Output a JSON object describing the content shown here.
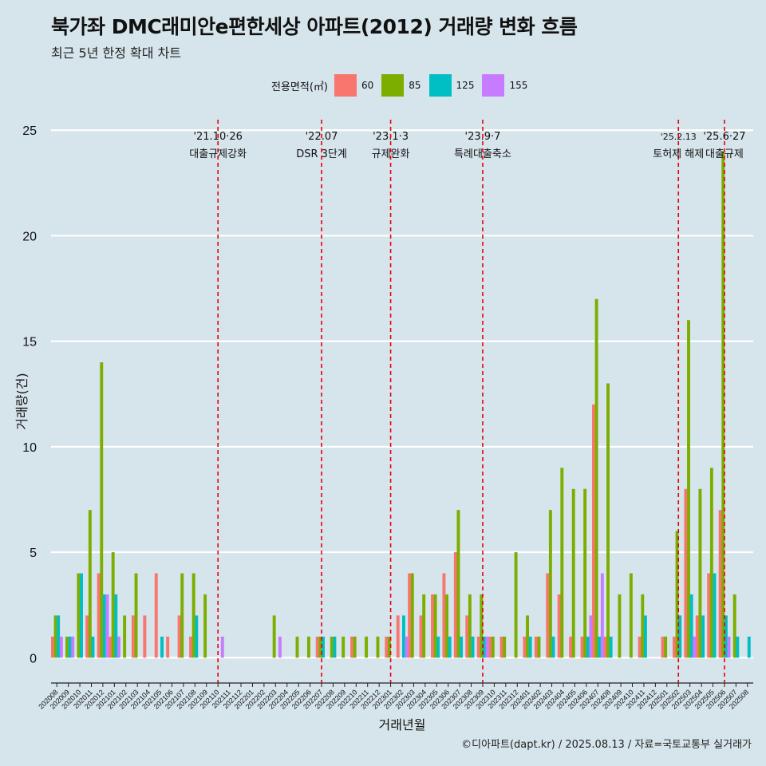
{
  "title": "북가좌 DMC래미안e편한세상 아파트(2012) 거래량 변화 흐름",
  "subtitle": "최근 5년 한정 확대 차트",
  "caption": "©디아파트(dapt.kr) / 2025.08.13 / 자료=국토교통부 실거래가",
  "chart_data": {
    "type": "bar",
    "xlabel": "거래년월",
    "ylabel": "거래량(건)",
    "ylim": [
      -1.2,
      25.5
    ],
    "yticks": [
      0,
      5,
      10,
      15,
      20,
      25
    ],
    "legend": {
      "title": "전용면적(㎡)",
      "position": "top",
      "items": [
        {
          "name": "60",
          "color": "#f8766d"
        },
        {
          "name": "85",
          "color": "#7cae00"
        },
        {
          "name": "125",
          "color": "#00bfc4"
        },
        {
          "name": "155",
          "color": "#c77cff"
        }
      ]
    },
    "categories": [
      "202008",
      "202009",
      "202010",
      "202011",
      "202012",
      "202101",
      "202102",
      "202103",
      "202104",
      "202105",
      "202106",
      "202107",
      "202108",
      "202109",
      "202110",
      "202111",
      "202112",
      "202201",
      "202202",
      "202203",
      "202204",
      "202205",
      "202206",
      "202207",
      "202208",
      "202209",
      "202210",
      "202211",
      "202212",
      "202301",
      "202302",
      "202303",
      "202304",
      "202305",
      "202306",
      "202307",
      "202308",
      "202309",
      "202310",
      "202311",
      "202312",
      "202401",
      "202402",
      "202403",
      "202404",
      "202405",
      "202406",
      "202407",
      "202408",
      "202409",
      "202410",
      "202411",
      "202412",
      "202501",
      "202502",
      "202503",
      "202504",
      "202505",
      "202506",
      "202507",
      "202508"
    ],
    "series": [
      {
        "name": "60",
        "color": "#f8766d",
        "values": [
          1,
          0,
          0,
          2,
          4,
          1,
          0,
          2,
          2,
          4,
          1,
          2,
          1,
          0,
          0,
          0,
          0,
          0,
          0,
          0,
          0,
          0,
          0,
          1,
          0,
          0,
          1,
          0,
          0,
          1,
          2,
          4,
          2,
          3,
          4,
          5,
          2,
          1,
          1,
          1,
          0,
          1,
          1,
          4,
          3,
          1,
          1,
          12,
          1,
          0,
          0,
          1,
          0,
          1,
          1,
          8,
          2,
          4,
          7,
          0,
          0
        ]
      },
      {
        "name": "85",
        "color": "#7cae00",
        "values": [
          2,
          1,
          4,
          7,
          14,
          5,
          2,
          4,
          0,
          0,
          0,
          4,
          4,
          3,
          0,
          0,
          0,
          0,
          0,
          2,
          0,
          1,
          1,
          1,
          1,
          1,
          1,
          1,
          1,
          1,
          0,
          4,
          3,
          3,
          3,
          7,
          3,
          3,
          1,
          1,
          5,
          2,
          1,
          7,
          9,
          8,
          8,
          17,
          13,
          3,
          4,
          3,
          0,
          1,
          6,
          16,
          8,
          9,
          24,
          3,
          0
        ]
      },
      {
        "name": "125",
        "color": "#00bfc4",
        "values": [
          2,
          1,
          4,
          1,
          3,
          3,
          0,
          0,
          0,
          1,
          0,
          0,
          2,
          0,
          0,
          0,
          0,
          0,
          0,
          0,
          0,
          0,
          0,
          1,
          1,
          0,
          0,
          0,
          0,
          0,
          2,
          0,
          0,
          1,
          1,
          1,
          1,
          1,
          0,
          0,
          0,
          1,
          0,
          1,
          0,
          0,
          1,
          1,
          1,
          0,
          0,
          2,
          0,
          0,
          2,
          3,
          2,
          4,
          2,
          1,
          1
        ]
      },
      {
        "name": "155",
        "color": "#c77cff",
        "values": [
          1,
          1,
          0,
          0,
          3,
          1,
          0,
          0,
          0,
          0,
          0,
          0,
          0,
          0,
          1,
          0,
          0,
          0,
          0,
          1,
          0,
          0,
          0,
          0,
          0,
          0,
          0,
          0,
          0,
          0,
          1,
          0,
          0,
          0,
          0,
          0,
          0,
          1,
          0,
          0,
          0,
          0,
          0,
          0,
          0,
          0,
          2,
          4,
          0,
          0,
          0,
          0,
          0,
          0,
          0,
          1,
          0,
          0,
          1,
          0,
          0
        ]
      }
    ],
    "annotations": [
      {
        "category": "202110",
        "line1": "'21.10·26",
        "line2": "대출규제강화"
      },
      {
        "category": "202207",
        "line1": "'22.07",
        "line2": "DSR 3단계"
      },
      {
        "category": "202301",
        "line1": "'23.1·3",
        "line2": "규제완화"
      },
      {
        "category": "202309",
        "line1": "'23.9·7",
        "line2": "특례대출축소"
      },
      {
        "category": "202502",
        "line1": "'25.2.13",
        "line2": "토허제 해제"
      },
      {
        "category": "202506",
        "line1": "'25.6·27",
        "line2": "대출규제"
      }
    ]
  }
}
